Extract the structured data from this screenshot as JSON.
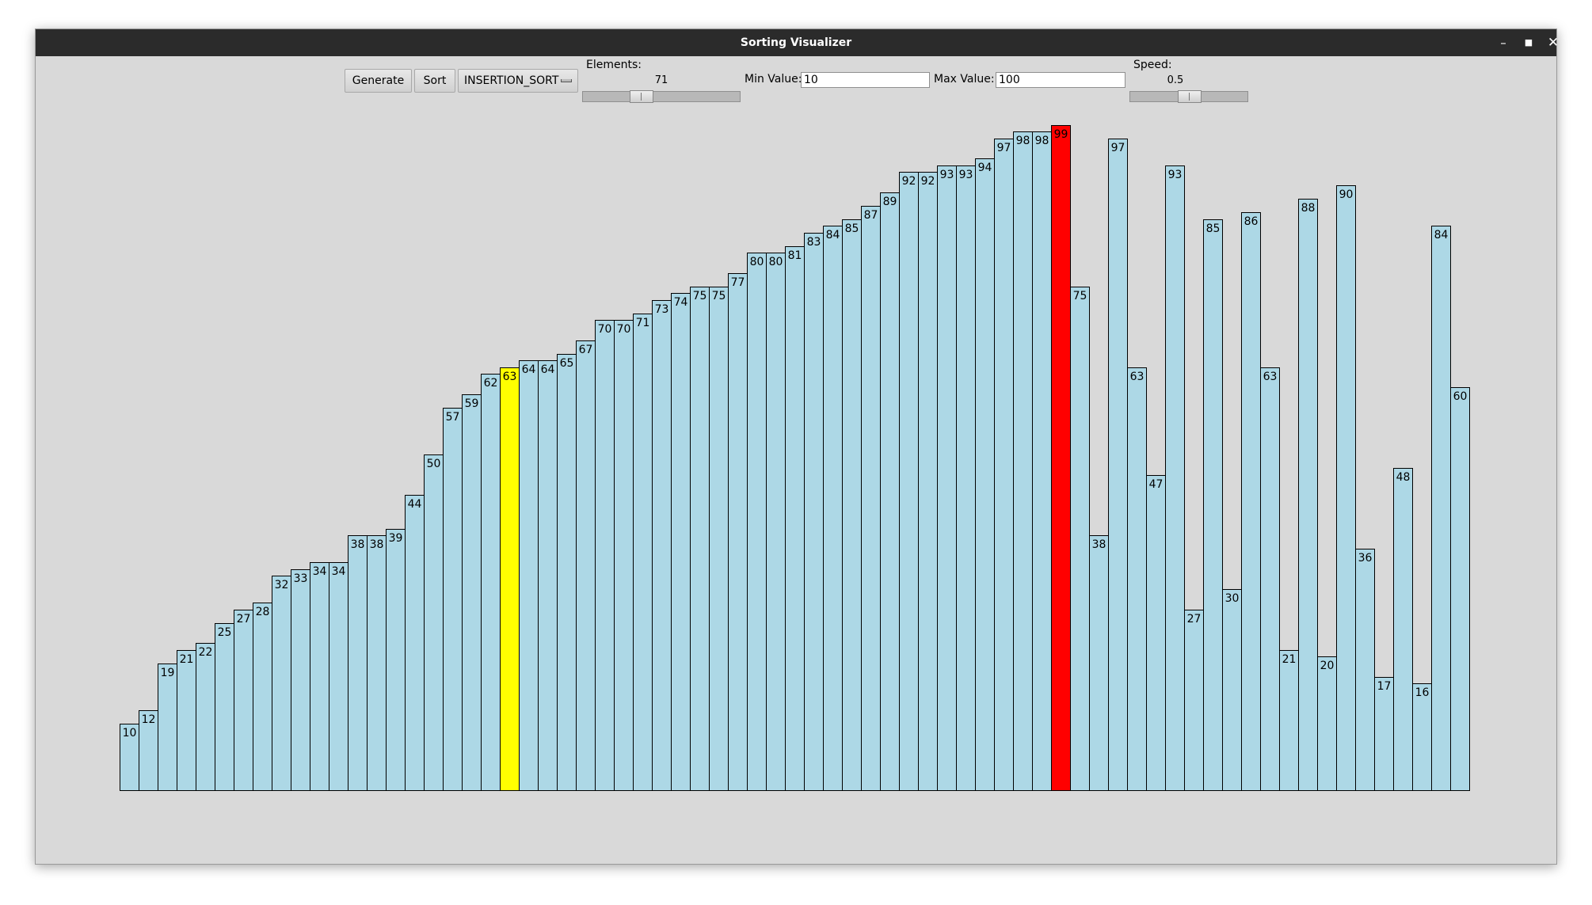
{
  "window": {
    "title": "Sorting Visualizer"
  },
  "titlebar_icons": [
    "minimize-icon",
    "maximize-icon",
    "close-icon"
  ],
  "controls": {
    "generate_label": "Generate",
    "sort_label": "Sort",
    "algorithm": "INSERTION_SORT",
    "elements_label": "Elements:",
    "elements_value": 71,
    "elements_range": [
      3,
      200
    ],
    "min_label": "Min Value:",
    "min_value": "10",
    "max_label": "Max Value:",
    "max_value": "100",
    "speed_label": "Speed:",
    "speed_value": 0.5,
    "speed_range": [
      0,
      1
    ]
  },
  "colors": {
    "bar_default": "#add8e6",
    "bar_key": "#ffff00",
    "bar_compare": "#ff0000",
    "window_bg": "#d9d9d9",
    "titlebar_bg": "#2b2b2b"
  },
  "bars": {
    "max_value": 100,
    "highlight": {
      "key_index": 20,
      "compare_index": 49
    },
    "values": [
      10,
      12,
      19,
      21,
      22,
      25,
      27,
      28,
      32,
      33,
      34,
      34,
      38,
      38,
      39,
      44,
      50,
      57,
      59,
      62,
      63,
      64,
      64,
      65,
      67,
      70,
      70,
      71,
      73,
      74,
      75,
      75,
      77,
      80,
      80,
      81,
      83,
      84,
      85,
      87,
      89,
      92,
      92,
      93,
      93,
      94,
      97,
      98,
      98,
      99,
      75,
      38,
      97,
      63,
      47,
      93,
      27,
      85,
      30,
      86,
      63,
      21,
      88,
      20,
      90,
      36,
      17,
      48,
      16,
      84,
      60
    ]
  }
}
